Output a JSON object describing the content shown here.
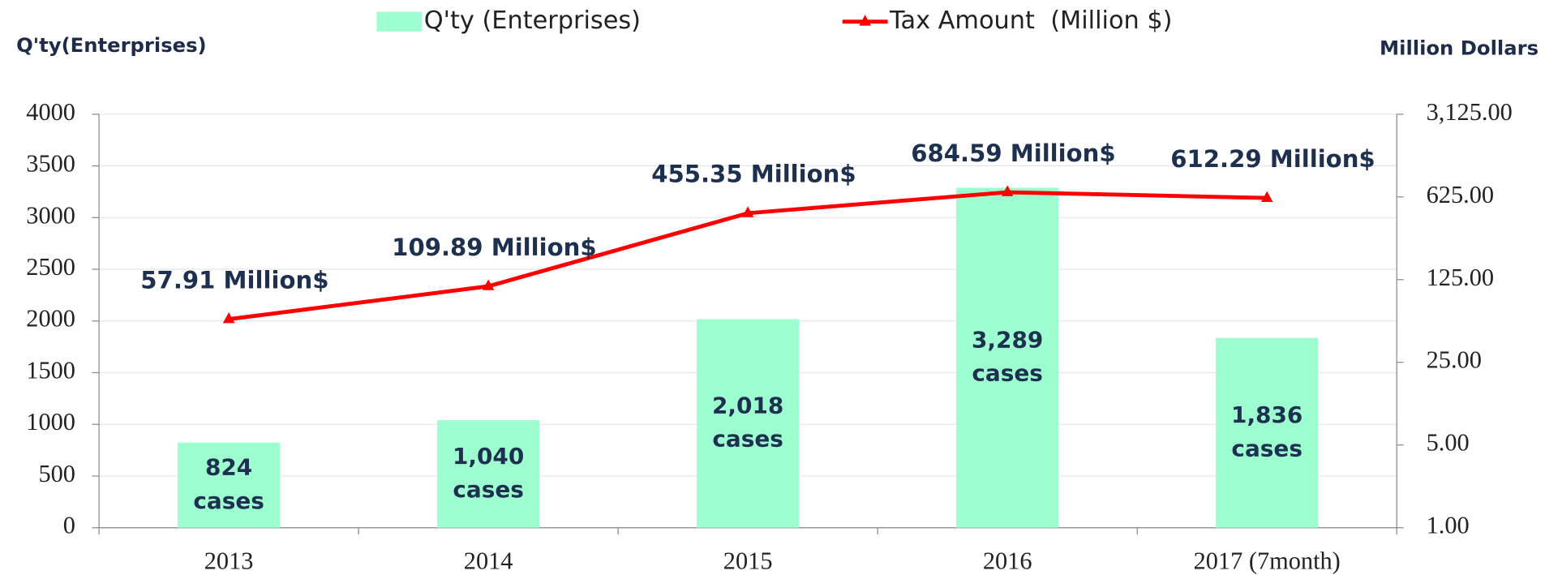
{
  "chart_data": {
    "type": "bar-line",
    "y_axis_title": "Q'ty(Enterprises)",
    "y2_axis_title": "Million Dollars",
    "categories": [
      "2013",
      "2014",
      "2015",
      "2016",
      "2017 (7month)"
    ],
    "series": [
      {
        "name": "Q'ty (Enterprises)",
        "type": "bar",
        "color": "#9dffcf",
        "values": [
          824,
          1040,
          2018,
          3289,
          1836
        ],
        "value_labels": [
          "824\ncases",
          "1,040\ncases",
          "2,018\ncases",
          "3,289\ncases",
          "1,836\ncases"
        ]
      },
      {
        "name": "Tax Amount  (Million $)",
        "type": "line",
        "axis": "y2",
        "color": "#ff0000",
        "values": [
          57.91,
          109.89,
          455.35,
          684.59,
          612.29
        ],
        "value_labels": [
          "57.91 Million$",
          "109.89 Million$",
          "455.35 Million$",
          "684.59 Million$",
          "612.29 Million$"
        ]
      }
    ],
    "ylim": [
      0,
      4000
    ],
    "yticks": [
      0,
      500,
      1000,
      1500,
      2000,
      2500,
      3000,
      3500,
      4000
    ],
    "y2lim": [
      1,
      3125
    ],
    "y2scale": "log",
    "y2ticks": [
      {
        "value": 1,
        "label": "1.00"
      },
      {
        "value": 5,
        "label": "5.00"
      },
      {
        "value": 25,
        "label": "25.00"
      },
      {
        "value": 125,
        "label": "125.00"
      },
      {
        "value": 625,
        "label": "625.00"
      },
      {
        "value": 3125,
        "label": "3,125.00"
      }
    ],
    "grid": true
  }
}
